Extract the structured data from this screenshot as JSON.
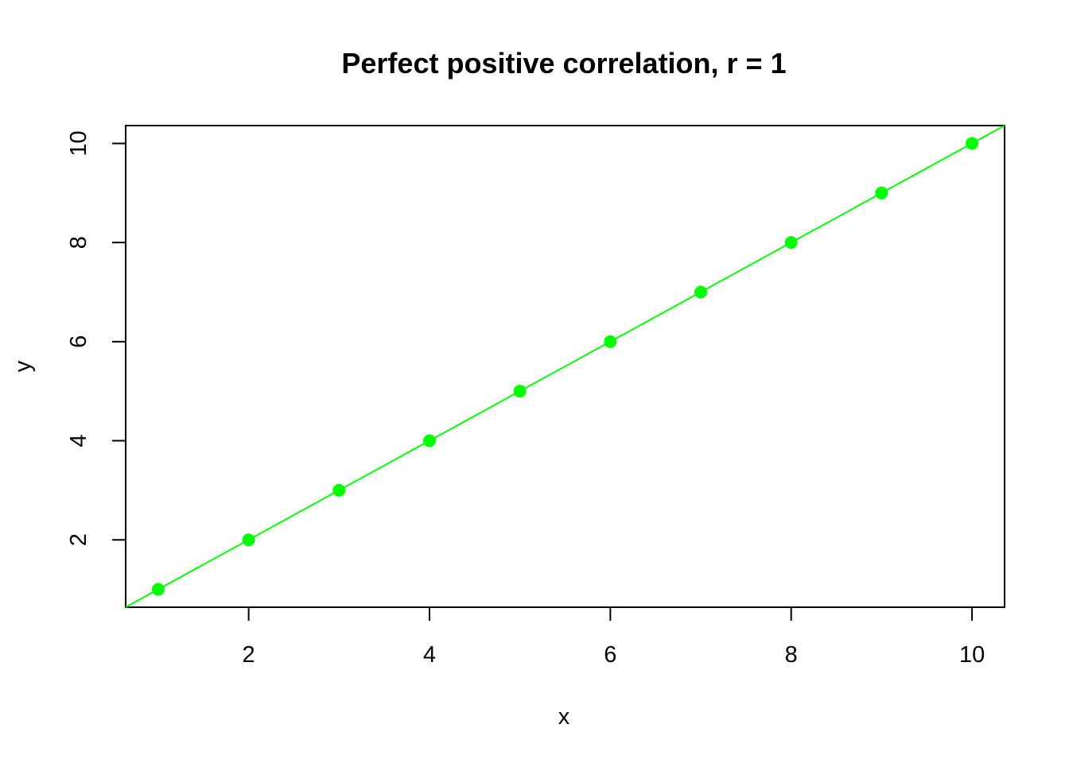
{
  "chart_data": {
    "type": "scatter",
    "title": "Perfect positive correlation, r = 1",
    "xlabel": "x",
    "ylabel": "y",
    "xlim": [
      0.64,
      10.36
    ],
    "ylim": [
      0.64,
      10.36
    ],
    "xticks": [
      2,
      4,
      6,
      8,
      10
    ],
    "yticks": [
      2,
      4,
      6,
      8,
      10
    ],
    "grid": false,
    "series": [
      {
        "x": [
          1,
          2,
          3,
          4,
          5,
          6,
          7,
          8,
          9,
          10
        ],
        "y": [
          1,
          2,
          3,
          4,
          5,
          6,
          7,
          8,
          9,
          10
        ],
        "color": "#00ff00"
      }
    ],
    "fit_line": {
      "intercept": 0,
      "slope": 1,
      "color": "#00ff00"
    }
  }
}
